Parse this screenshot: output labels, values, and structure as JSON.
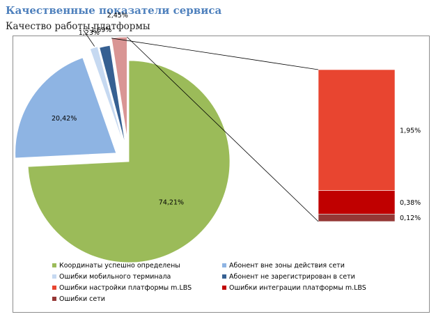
{
  "header": {
    "title": "Качественные показатели сервиса",
    "subtitle": "Качество работы платформы"
  },
  "chart_data": {
    "type": "pie",
    "title": "",
    "subtype": "pie-of-bar",
    "slices": [
      {
        "name": "Координаты успешно определены",
        "value": 74.21,
        "label": "74,21%",
        "color": "#9bbb59"
      },
      {
        "name": "Абонент вне зоны действия сети",
        "value": 20.42,
        "label": "20,42%",
        "color": "#8eb4e3"
      },
      {
        "name": "Ошибки мобильного терминала",
        "value": 1.23,
        "label": "1,23%",
        "color": "#c6d9f1"
      },
      {
        "name": "Абонент не зарегистрирован в сети",
        "value": 1.69,
        "label": "1,69%",
        "color": "#366092"
      },
      {
        "name": "Other",
        "value": 2.45,
        "label": "2,45%",
        "color": "#d99594"
      }
    ],
    "bar_breakdown": [
      {
        "name": "Ошибки настройки платформы m.LBS",
        "value": 1.95,
        "label": "1,95%",
        "color": "#e84530"
      },
      {
        "name": "Ошибки интеграции платформы m.LBS",
        "value": 0.38,
        "label": "0,38%",
        "color": "#c00000"
      },
      {
        "name": "Ошибки сети",
        "value": 0.12,
        "label": "0,12%",
        "color": "#953735"
      }
    ],
    "legend": {
      "position": "bottom",
      "items": [
        {
          "label": "Координаты успешно определены",
          "color": "#9bbb59"
        },
        {
          "label": "Абонент вне зоны действия сети",
          "color": "#8eb4e3"
        },
        {
          "label": "Ошибки мобильного терминала",
          "color": "#c6d9f1"
        },
        {
          "label": "Абонент не зарегистрирован в сети",
          "color": "#366092"
        },
        {
          "label": "Ошибки настройки платформы m.LBS",
          "color": "#e84530"
        },
        {
          "label": "Ошибки интеграции платформы m.LBS",
          "color": "#c00000"
        },
        {
          "label": "Ошибки сети",
          "color": "#953735"
        }
      ]
    }
  }
}
